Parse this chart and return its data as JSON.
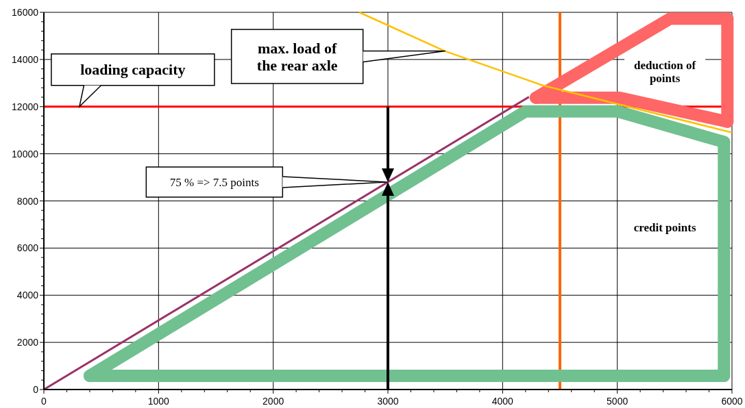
{
  "chart_data": {
    "type": "line",
    "xlim": [
      0,
      6000
    ],
    "ylim": [
      0,
      16000
    ],
    "xticks": [
      0,
      {
        "value": 200,
        "label": null
      },
      {
        "value": 400,
        "label": null
      },
      {
        "value": 600,
        "label": null
      },
      {
        "value": 800,
        "label": null
      },
      1000,
      {
        "value": 1200,
        "label": null
      },
      {
        "value": 1400,
        "label": null
      },
      {
        "value": 1600,
        "label": null
      },
      {
        "value": 1800,
        "label": null
      },
      2000,
      {
        "value": 2200,
        "label": null
      },
      {
        "value": 2400,
        "label": null
      },
      {
        "value": 2600,
        "label": null
      },
      {
        "value": 2800,
        "label": null
      },
      3000,
      {
        "value": 3200,
        "label": null
      },
      {
        "value": 3400,
        "label": null
      },
      {
        "value": 3600,
        "label": null
      },
      {
        "value": 3800,
        "label": null
      },
      4000,
      {
        "value": 4200,
        "label": null
      },
      {
        "value": 4400,
        "label": null
      },
      {
        "value": 4600,
        "label": null
      },
      {
        "value": 4800,
        "label": null
      },
      5000,
      {
        "value": 5200,
        "label": null
      },
      {
        "value": 5400,
        "label": null
      },
      {
        "value": 5600,
        "label": null
      },
      {
        "value": 5800,
        "label": null
      },
      6000
    ],
    "yticks": [
      0,
      {
        "value": 400,
        "label": null
      },
      {
        "value": 800,
        "label": null
      },
      {
        "value": 1200,
        "label": null
      },
      {
        "value": 1600,
        "label": null
      },
      2000,
      {
        "value": 2400,
        "label": null
      },
      {
        "value": 2800,
        "label": null
      },
      {
        "value": 3200,
        "label": null
      },
      {
        "value": 3600,
        "label": null
      },
      4000,
      {
        "value": 4400,
        "label": null
      },
      {
        "value": 4800,
        "label": null
      },
      {
        "value": 5200,
        "label": null
      },
      {
        "value": 5600,
        "label": null
      },
      6000,
      {
        "value": 6400,
        "label": null
      },
      {
        "value": 6800,
        "label": null
      },
      {
        "value": 7200,
        "label": null
      },
      {
        "value": 7600,
        "label": null
      },
      8000,
      {
        "value": 8400,
        "label": null
      },
      {
        "value": 8800,
        "label": null
      },
      {
        "value": 9200,
        "label": null
      },
      {
        "value": 9600,
        "label": null
      },
      10000,
      {
        "value": 10400,
        "label": null
      },
      {
        "value": 10800,
        "label": null
      },
      {
        "value": 11200,
        "label": null
      },
      {
        "value": 11600,
        "label": null
      },
      12000,
      {
        "value": 12400,
        "label": null
      },
      {
        "value": 12800,
        "label": null
      },
      {
        "value": 13200,
        "label": null
      },
      {
        "value": 13600,
        "label": null
      },
      14000,
      {
        "value": 14400,
        "label": null
      },
      {
        "value": 14800,
        "label": null
      },
      {
        "value": 15200,
        "label": null
      },
      {
        "value": 15600,
        "label": null
      },
      16000
    ],
    "grid": true,
    "series": [
      {
        "color": "#70c090",
        "x": [
          400,
          4200,
          5000,
          5930
        ],
        "values": [
          580,
          11800,
          11800,
          10500
        ]
      },
      {
        "color": "#70c090",
        "x": [
          400,
          5930
        ],
        "values": [
          580,
          580
        ]
      },
      {
        "color": "#70c090",
        "x": [
          5930,
          5930
        ],
        "values": [
          580,
          10500
        ]
      },
      {
        "color": "#ff6666",
        "x": [
          4290,
          5460,
          5960
        ],
        "values": [
          12380,
          15730,
          15730
        ]
      },
      {
        "color": "#ff6666",
        "x": [
          4290,
          5020,
          5960
        ],
        "values": [
          12380,
          12380,
          11360
        ]
      },
      {
        "color": "#ff6666",
        "x": [
          5960,
          5960
        ],
        "values": [
          11360,
          15730
        ]
      },
      {
        "color": "#993366",
        "x": [
          0,
          4230
        ],
        "values": [
          0,
          12410
        ]
      },
      {
        "color": "#ffc000",
        "x": [
          2750,
          3500,
          4350,
          6000
        ],
        "values": [
          16000,
          14350,
          12900,
          10900
        ]
      }
    ],
    "ref_lines": [
      {
        "axis": "y",
        "value": 12000,
        "color": "#ff0000"
      },
      {
        "axis": "x",
        "value": 4500,
        "color": "#ff6600"
      }
    ],
    "annotations": [
      {
        "text": "loading capacity",
        "x": 310,
        "y": 12000
      },
      "max. load of the rear axle",
      "75 % => 7.5 points",
      "deduction of points",
      "credit points"
    ]
  }
}
